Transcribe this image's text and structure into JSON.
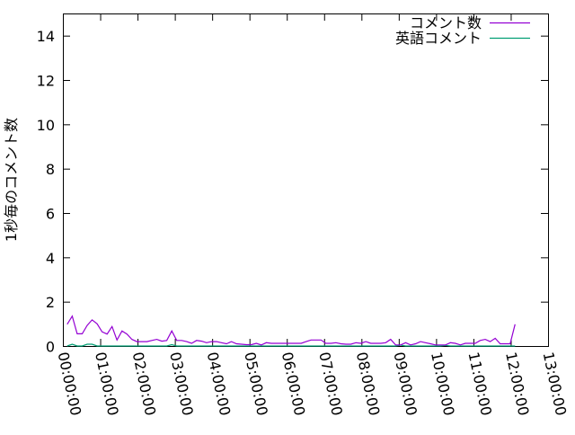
{
  "chart_data": {
    "type": "line",
    "title": "",
    "xlabel": "",
    "ylabel": "1秒毎のコメント数",
    "xlim": [
      "00:00:00",
      "13:00:00"
    ],
    "ylim": [
      0,
      15
    ],
    "x_ticks": [
      "00:00:00",
      "01:00:00",
      "02:00:00",
      "03:00:00",
      "04:00:00",
      "05:00:00",
      "06:00:00",
      "07:00:00",
      "08:00:00",
      "09:00:00",
      "10:00:00",
      "11:00:00",
      "12:00:00",
      "13:00:00"
    ],
    "y_ticks": [
      "0",
      "2",
      "4",
      "6",
      "8",
      "10",
      "12",
      "14"
    ],
    "grid": false,
    "legend_position": "top-right",
    "x": [
      "00:07",
      "00:15",
      "00:23",
      "00:31",
      "00:39",
      "00:47",
      "00:55",
      "01:03",
      "01:11",
      "01:19",
      "01:27",
      "01:35",
      "01:43",
      "01:51",
      "01:59",
      "02:07",
      "02:15",
      "02:23",
      "02:31",
      "02:39",
      "02:47",
      "02:55",
      "03:03",
      "03:11",
      "03:19",
      "03:27",
      "03:35",
      "03:43",
      "03:51",
      "03:59",
      "04:07",
      "04:15",
      "04:23",
      "04:31",
      "04:39",
      "04:47",
      "04:55",
      "05:03",
      "05:11",
      "05:19",
      "05:27",
      "05:35",
      "05:43",
      "05:51",
      "05:59",
      "06:07",
      "06:15",
      "06:23",
      "06:31",
      "06:39",
      "06:47",
      "06:55",
      "07:03",
      "07:11",
      "07:19",
      "07:27",
      "07:35",
      "07:43",
      "07:51",
      "07:59",
      "08:07",
      "08:15",
      "08:23",
      "08:31",
      "08:39",
      "08:47",
      "08:55",
      "09:03",
      "09:11",
      "09:19",
      "09:27",
      "09:35",
      "09:43",
      "09:51",
      "09:59",
      "10:07",
      "10:15",
      "10:23",
      "10:31",
      "10:39",
      "10:47",
      "10:55",
      "11:03",
      "11:11",
      "11:19",
      "11:27",
      "11:35",
      "11:43",
      "11:51",
      "11:59",
      "12:07"
    ],
    "series": [
      {
        "name": "コメント数",
        "color": "#9400d3",
        "values": [
          0.98,
          1.35,
          0.55,
          0.55,
          0.93,
          1.18,
          1.0,
          0.64,
          0.54,
          0.88,
          0.27,
          0.68,
          0.54,
          0.3,
          0.2,
          0.2,
          0.2,
          0.25,
          0.3,
          0.22,
          0.25,
          0.68,
          0.25,
          0.25,
          0.2,
          0.12,
          0.25,
          0.22,
          0.15,
          0.2,
          0.2,
          0.15,
          0.1,
          0.2,
          0.1,
          0.08,
          0.06,
          0.06,
          0.12,
          0.05,
          0.15,
          0.12,
          0.12,
          0.12,
          0.12,
          0.12,
          0.12,
          0.12,
          0.2,
          0.27,
          0.27,
          0.27,
          0.12,
          0.12,
          0.15,
          0.1,
          0.08,
          0.08,
          0.15,
          0.12,
          0.2,
          0.12,
          0.12,
          0.12,
          0.15,
          0.3,
          0.05,
          0.05,
          0.15,
          0.05,
          0.1,
          0.2,
          0.15,
          0.1,
          0.05,
          0.05,
          0.05,
          0.15,
          0.12,
          0.05,
          0.12,
          0.12,
          0.12,
          0.25,
          0.3,
          0.2,
          0.35,
          0.1,
          0.1,
          0.1,
          0.98
        ]
      },
      {
        "name": "英語コメント",
        "color": "#009e73",
        "values": [
          0,
          0.08,
          0,
          0,
          0.08,
          0.08,
          0,
          0,
          0,
          0,
          0,
          0,
          0,
          0,
          0,
          0,
          0,
          0,
          0,
          0,
          0,
          0.06,
          0,
          0,
          0,
          0,
          0,
          0,
          0,
          0,
          0,
          0,
          0,
          0,
          0,
          0,
          0,
          0,
          0,
          0,
          0,
          0,
          0,
          0,
          0,
          0,
          0,
          0,
          0,
          0,
          0,
          0,
          0,
          0,
          0,
          0,
          0,
          0,
          0,
          0,
          0,
          0,
          0,
          0,
          0,
          0,
          0,
          0.04,
          0,
          0,
          0,
          0,
          0,
          0,
          0,
          0,
          0.03,
          0,
          0,
          0,
          0,
          0,
          0,
          0,
          0,
          0,
          0,
          0,
          0,
          0,
          0
        ]
      }
    ]
  }
}
